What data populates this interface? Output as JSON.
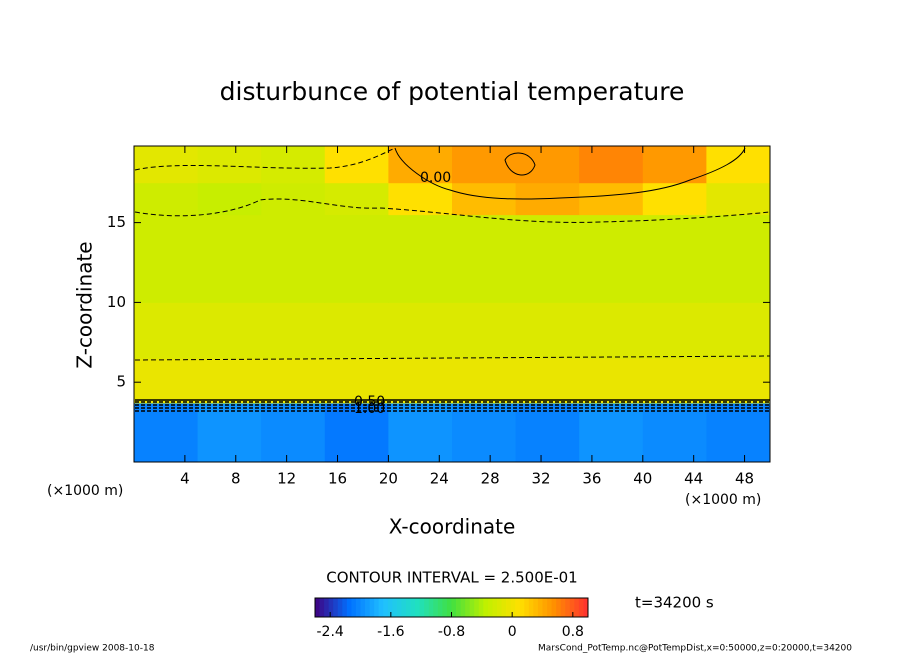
{
  "chart_data": {
    "type": "contour",
    "title": "disturbunce of potential temperature",
    "x_label": "X-coordinate",
    "y_label": "Z-coordinate",
    "x_unit": "(×1000 m)",
    "y_unit": "(×1000 m)",
    "x_edges": [
      0,
      5,
      10,
      15,
      20,
      25,
      30,
      35,
      40,
      45,
      50
    ],
    "y_edges": [
      0,
      3.7,
      6.5,
      10,
      15.5,
      17.5,
      19.8
    ],
    "z": [
      [
        -2.05,
        -1.95,
        -2.0,
        -2.1,
        -1.95,
        -2.0,
        -2.05,
        -1.95,
        -2.0,
        -2.05
      ],
      [
        -0.05,
        -0.05,
        -0.05,
        -0.05,
        -0.05,
        -0.05,
        -0.05,
        -0.05,
        -0.05,
        -0.05
      ],
      [
        -0.15,
        -0.15,
        -0.15,
        -0.15,
        -0.15,
        -0.15,
        -0.15,
        -0.15,
        -0.15,
        -0.15
      ],
      [
        -0.25,
        -0.25,
        -0.25,
        -0.25,
        -0.25,
        -0.25,
        -0.25,
        -0.25,
        -0.25,
        -0.25
      ],
      [
        -0.25,
        -0.3,
        -0.25,
        -0.2,
        0.1,
        0.3,
        0.4,
        0.3,
        0.1,
        -0.1
      ],
      [
        -0.1,
        -0.15,
        -0.2,
        0.1,
        0.4,
        0.5,
        0.5,
        0.6,
        0.5,
        0.1
      ]
    ],
    "xlim": [
      0,
      50
    ],
    "ylim": [
      0,
      19.8
    ],
    "xticks": [
      4,
      8,
      12,
      16,
      20,
      24,
      28,
      32,
      36,
      40,
      44,
      48
    ],
    "yticks": [
      5,
      10,
      15
    ],
    "clim": [
      -2.6,
      1.0
    ],
    "cticks": [
      -2.4,
      -1.6,
      -0.8,
      0,
      0.8
    ],
    "colormap": [
      "#400080",
      "#0070ff",
      "#20c0ff",
      "#20e0c0",
      "#40e040",
      "#c0f000",
      "#ffe000",
      "#ff9000",
      "#ff3030"
    ],
    "contour_labels": [
      "0.00",
      "0.50",
      "1.00"
    ],
    "contour_interval": "CONTOUR INTERVAL = 2.500E-01",
    "time_label": "t=34200 s",
    "footer_left": "/usr/bin/gpview   2008-10-18",
    "footer_right": "MarsCond_PotTemp.nc@PotTempDist,x=0:50000,z=0:20000,t=34200"
  }
}
